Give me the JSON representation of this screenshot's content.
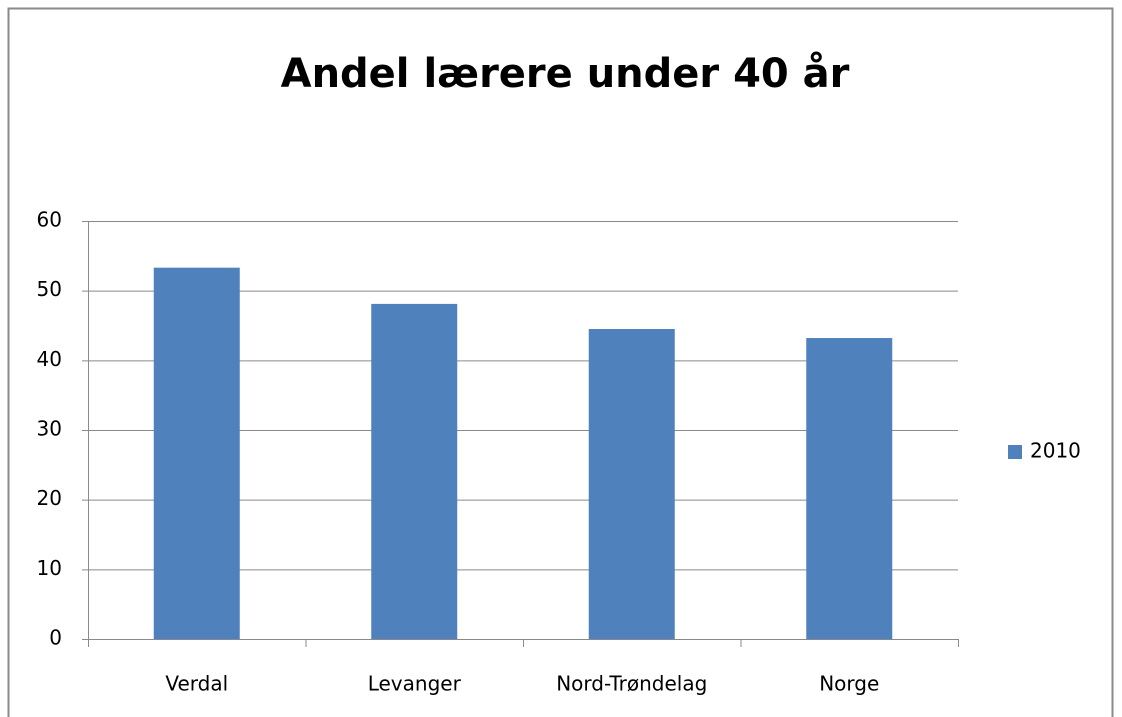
{
  "chart_data": {
    "type": "bar",
    "title": "Andel lærere under 40 år",
    "categories": [
      "Verdal",
      "Levanger",
      "Nord-Trøndelag",
      "Norge"
    ],
    "series": [
      {
        "name": "2010",
        "color": "#4f81bd",
        "values": [
          53.3,
          48.1,
          44.5,
          43.2
        ]
      }
    ],
    "ylim": [
      0,
      60
    ],
    "yticks": [
      0,
      10,
      20,
      30,
      40,
      50,
      60
    ],
    "grid": true,
    "legend": "right"
  }
}
